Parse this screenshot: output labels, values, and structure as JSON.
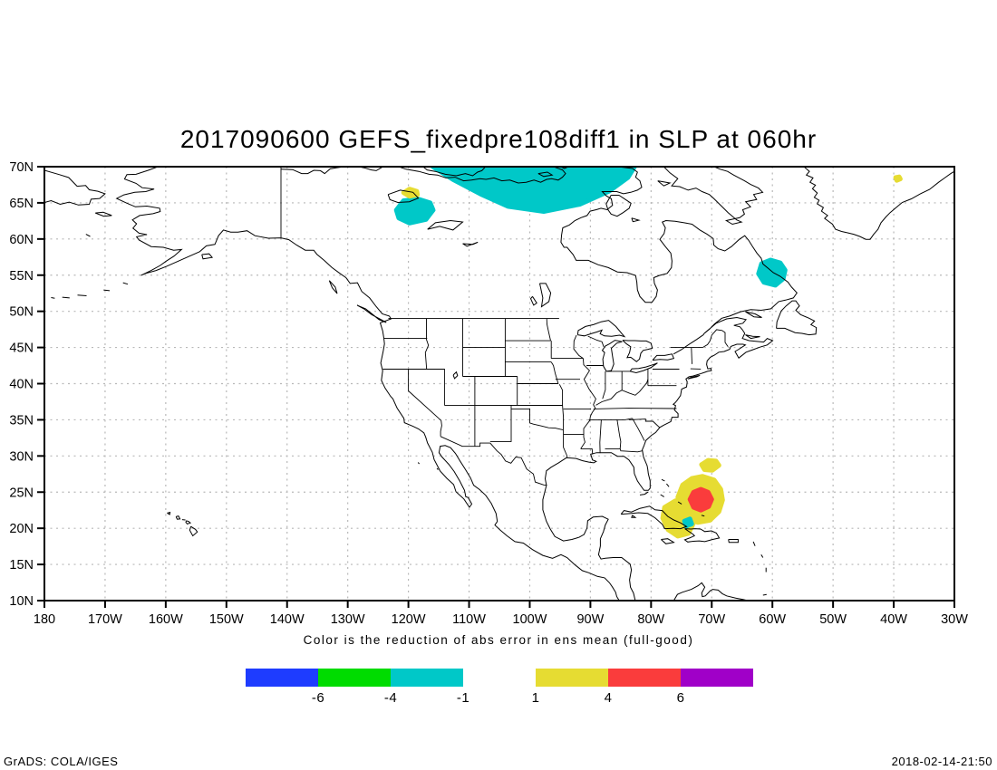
{
  "title": "2017090600 GEFS_fixedpre108diff1 in SLP at 060hr",
  "caption": "Color is the reduction of abs error in ens mean (full-good)",
  "footer": {
    "left": "GrADS: COLA/IGES",
    "right": "2018-02-14-21:50"
  },
  "axes": {
    "lat_ticks": [
      {
        "label": "70N",
        "lat": 70
      },
      {
        "label": "65N",
        "lat": 65
      },
      {
        "label": "60N",
        "lat": 60
      },
      {
        "label": "55N",
        "lat": 55
      },
      {
        "label": "50N",
        "lat": 50
      },
      {
        "label": "45N",
        "lat": 45
      },
      {
        "label": "40N",
        "lat": 40
      },
      {
        "label": "35N",
        "lat": 35
      },
      {
        "label": "30N",
        "lat": 30
      },
      {
        "label": "25N",
        "lat": 25
      },
      {
        "label": "20N",
        "lat": 20
      },
      {
        "label": "15N",
        "lat": 15
      },
      {
        "label": "10N",
        "lat": 10
      }
    ],
    "lon_ticks": [
      {
        "label": "180",
        "lon": -180
      },
      {
        "label": "170W",
        "lon": -170
      },
      {
        "label": "160W",
        "lon": -160
      },
      {
        "label": "150W",
        "lon": -150
      },
      {
        "label": "140W",
        "lon": -140
      },
      {
        "label": "130W",
        "lon": -130
      },
      {
        "label": "120W",
        "lon": -120
      },
      {
        "label": "110W",
        "lon": -110
      },
      {
        "label": "100W",
        "lon": -100
      },
      {
        "label": "90W",
        "lon": -90
      },
      {
        "label": "80W",
        "lon": -80
      },
      {
        "label": "70W",
        "lon": -70
      },
      {
        "label": "60W",
        "lon": -60
      },
      {
        "label": "50W",
        "lon": -50
      },
      {
        "label": "40W",
        "lon": -40
      },
      {
        "label": "30W",
        "lon": -30
      }
    ],
    "grid_lat_step": 5,
    "grid_lon_step": 10,
    "grid_color": "#b8b8b8"
  },
  "colorbar": {
    "negative": {
      "segments": [
        {
          "color": "#1e3cff",
          "label": "-6"
        },
        {
          "color": "#00dc00",
          "label": "-4"
        },
        {
          "color": "#00c8c8",
          "label": "-1"
        }
      ]
    },
    "positive": {
      "segments": [
        {
          "color": "#e6dc32",
          "label": "1"
        },
        {
          "color": "#fa3c3c",
          "label": "4"
        },
        {
          "color": "#a000c8",
          "label": "6"
        }
      ]
    }
  },
  "chart_data": {
    "type": "filled-contour-map",
    "title": "2017090600 GEFS_fixedpre108diff1 in SLP at 060hr",
    "init_time": "2017090600",
    "model": "GEFS_fixedpre108diff1",
    "variable": "SLP",
    "forecast_hour": "060hr",
    "projection": "equirectangular",
    "lon_range": [
      -180,
      -30
    ],
    "lat_range": [
      10,
      70
    ],
    "shading_levels": [
      -6,
      -4,
      -1,
      1,
      4,
      6
    ],
    "legend_note": "Color is the reduction of abs error in ens mean (full-good)",
    "regions": [
      {
        "name": "canadian-arctic-negative",
        "value_range": [
          -4,
          -1
        ],
        "color": "#00c8c8",
        "polygon": [
          [
            -116,
            70
          ],
          [
            -82.7,
            70
          ],
          [
            -83.8,
            68.5
          ],
          [
            -86.9,
            66.6
          ],
          [
            -91.7,
            64.8
          ],
          [
            -97.7,
            63.8
          ],
          [
            -103.6,
            64.5
          ],
          [
            -108.1,
            66.2
          ],
          [
            -112.6,
            68.2
          ]
        ]
      },
      {
        "name": "nw-canada-negative",
        "value_range": [
          -4,
          -1
        ],
        "color": "#00c8c8",
        "polygon": [
          [
            -122,
            64
          ],
          [
            -120.8,
            65.3
          ],
          [
            -118.3,
            65.5
          ],
          [
            -116.4,
            65
          ],
          [
            -115.9,
            64
          ],
          [
            -117.1,
            62.7
          ],
          [
            -119.8,
            62.2
          ],
          [
            -121.6,
            62.9
          ]
        ]
      },
      {
        "name": "nw-canada-positive-fleck",
        "value_range": [
          1,
          4
        ],
        "color": "#e6dc32",
        "polygon": [
          [
            -120.8,
            66.4
          ],
          [
            -119.8,
            66.9
          ],
          [
            -118.6,
            66.6
          ],
          [
            -118.5,
            66.1
          ],
          [
            -119.8,
            65.9
          ]
        ]
      },
      {
        "name": "labrador-negative",
        "value_range": [
          -4,
          -1
        ],
        "color": "#00c8c8",
        "polygon": [
          [
            -62.3,
            55.2
          ],
          [
            -61.8,
            56.6
          ],
          [
            -60.3,
            57.1
          ],
          [
            -58.7,
            56.7
          ],
          [
            -57.9,
            55.7
          ],
          [
            -58.2,
            54.5
          ],
          [
            -59.5,
            53.6
          ],
          [
            -61.4,
            54
          ]
        ]
      },
      {
        "name": "hurricane-positive-outer",
        "value_range": [
          1,
          4
        ],
        "color": "#e6dc32",
        "polygon": [
          [
            -75.6,
            24.3
          ],
          [
            -74.8,
            26
          ],
          [
            -73.3,
            26.9
          ],
          [
            -71.5,
            27.2
          ],
          [
            -69.6,
            26.7
          ],
          [
            -68.5,
            25.4
          ],
          [
            -68.2,
            23.9
          ],
          [
            -68.8,
            22.3
          ],
          [
            -70.3,
            21.1
          ],
          [
            -72.3,
            20.8
          ],
          [
            -74.2,
            21.4
          ],
          [
            -75.3,
            22.7
          ]
        ]
      },
      {
        "name": "hurricane-positive-cuba-lobe",
        "value_range": [
          1,
          4
        ],
        "color": "#e6dc32",
        "polygon": [
          [
            -77.8,
            22.9
          ],
          [
            -76,
            23.8
          ],
          [
            -74.4,
            23.3
          ],
          [
            -73.5,
            22.2
          ],
          [
            -73,
            20.7
          ],
          [
            -73.8,
            19.3
          ],
          [
            -75.6,
            18.9
          ],
          [
            -77.2,
            19.8
          ],
          [
            -78.1,
            21.4
          ]
        ]
      },
      {
        "name": "hurricane-positive-streak",
        "value_range": [
          1,
          4
        ],
        "color": "#e6dc32",
        "polygon": [
          [
            -71.7,
            28.8
          ],
          [
            -70.6,
            29.4
          ],
          [
            -69.3,
            29.3
          ],
          [
            -68.8,
            28.7
          ],
          [
            -69.9,
            28
          ],
          [
            -71.2,
            28.1
          ]
        ]
      },
      {
        "name": "hurricane-positive-core",
        "value_range": [
          4,
          6
        ],
        "color": "#fa3c3c",
        "polygon": [
          [
            -73.6,
            24
          ],
          [
            -73,
            25
          ],
          [
            -71.8,
            25.4
          ],
          [
            -70.6,
            25
          ],
          [
            -70,
            24
          ],
          [
            -70.5,
            23
          ],
          [
            -71.8,
            22.5
          ],
          [
            -73,
            22.9
          ]
        ]
      },
      {
        "name": "hispaniola-negative-dot",
        "value_range": [
          -4,
          -1
        ],
        "color": "#00c8c8",
        "polygon": [
          [
            -74.5,
            21
          ],
          [
            -73.6,
            21.3
          ],
          [
            -73.3,
            20.6
          ],
          [
            -74.2,
            20.3
          ]
        ]
      },
      {
        "name": "greenland-positive-dot",
        "value_range": [
          1,
          4
        ],
        "color": "#e6dc32",
        "polygon": [
          [
            -39.7,
            68.5
          ],
          [
            -39.1,
            68.6
          ],
          [
            -38.9,
            68.3
          ],
          [
            -39.5,
            68.1
          ]
        ]
      }
    ]
  }
}
